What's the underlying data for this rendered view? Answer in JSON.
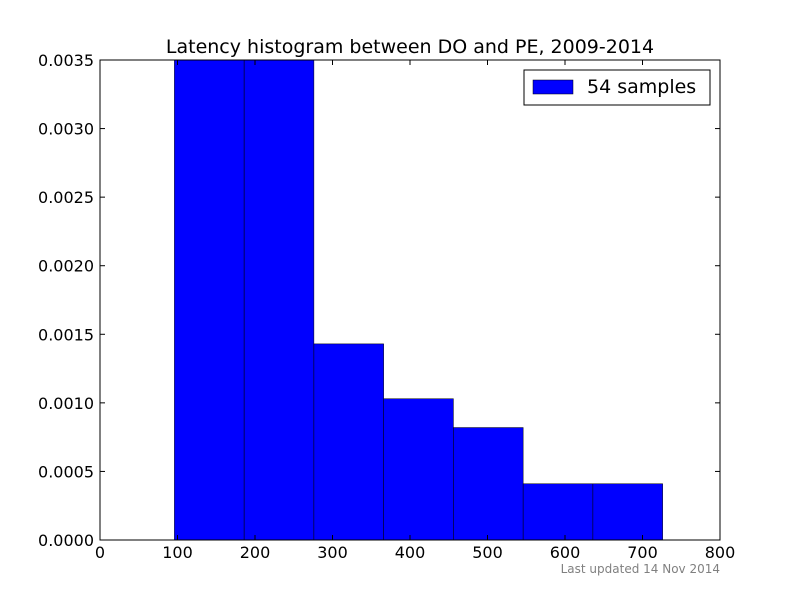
{
  "chart_data": {
    "type": "bar",
    "title": "Latency histogram between DO and PE, 2009-2014",
    "xlabel": "",
    "ylabel": "",
    "xlim": [
      0,
      800
    ],
    "ylim": [
      0,
      0.0035
    ],
    "x_ticks": [
      "0",
      "100",
      "200",
      "300",
      "400",
      "500",
      "600",
      "700",
      "800"
    ],
    "x_tick_values": [
      0,
      100,
      200,
      300,
      400,
      500,
      600,
      700,
      800
    ],
    "y_ticks": [
      "0.0000",
      "0.0005",
      "0.0010",
      "0.0015",
      "0.0020",
      "0.0025",
      "0.0030",
      "0.0035"
    ],
    "y_tick_values": [
      0,
      0.0005,
      0.001,
      0.0015,
      0.002,
      0.0025,
      0.003,
      0.0035
    ],
    "bins": [
      {
        "x0": 96,
        "x1": 186,
        "value": 0.0035
      },
      {
        "x0": 186,
        "x1": 276,
        "value": 0.0035
      },
      {
        "x0": 276,
        "x1": 366,
        "value": 0.00143
      },
      {
        "x0": 366,
        "x1": 456,
        "value": 0.00103
      },
      {
        "x0": 456,
        "x1": 546,
        "value": 0.00082
      },
      {
        "x0": 546,
        "x1": 636,
        "value": 0.00041
      },
      {
        "x0": 636,
        "x1": 726,
        "value": 0.00041
      }
    ],
    "bar_color": "#0000ff",
    "legend": {
      "label": "54 samples",
      "placement": "top-right"
    },
    "grid": false
  },
  "footnote": "Last updated 14 Nov 2014"
}
